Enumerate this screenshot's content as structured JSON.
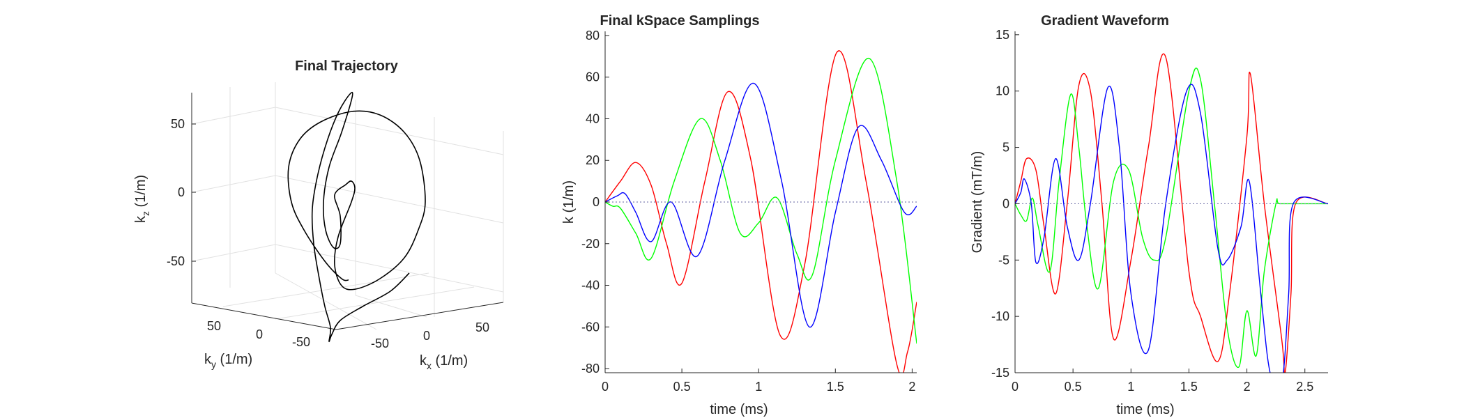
{
  "chart_data": [
    {
      "type": "line",
      "title": "Final Trajectory",
      "projection": "3d",
      "xlabel": "k",
      "xlabel_sub": "x",
      "xlabel_unit": " (1/m)",
      "ylabel": "k",
      "ylabel_sub": "y",
      "ylabel_unit": " (1/m)",
      "zlabel": "k",
      "zlabel_sub": "z",
      "zlabel_unit": " (1/m)",
      "xticks": [
        "-50",
        "0",
        "50"
      ],
      "yticks": [
        "50",
        "0",
        "-50"
      ],
      "zticks": [
        "50",
        "0",
        "-50"
      ],
      "grid": true,
      "line_color": "#000000"
    },
    {
      "type": "line",
      "title": "Final kSpace Samplings",
      "xlabel": "time (ms)",
      "ylabel": "k (1/m)",
      "xlim": [
        0,
        2.03
      ],
      "ylim": [
        -82,
        82
      ],
      "xticks": [
        "0",
        "0.5",
        "1",
        "1.5",
        "2"
      ],
      "yticks": [
        "80",
        "60",
        "40",
        "20",
        "0",
        "-20",
        "-40",
        "-60",
        "-80"
      ],
      "series": [
        {
          "color": "#ff0000",
          "x": [
            0,
            0.1,
            0.2,
            0.3,
            0.4,
            0.5,
            0.65,
            0.8,
            0.95,
            1.14,
            1.3,
            1.51,
            1.7,
            1.9,
            1.97,
            2.03
          ],
          "values": [
            0,
            10,
            19,
            8,
            -20,
            -39,
            10,
            53,
            20,
            -64,
            -30,
            72,
            10,
            -78,
            -72,
            -48
          ]
        },
        {
          "color": "#00ff00",
          "x": [
            0,
            0.05,
            0.1,
            0.2,
            0.3,
            0.45,
            0.62,
            0.75,
            0.88,
            1.0,
            1.12,
            1.25,
            1.35,
            1.5,
            1.72,
            1.9,
            2.03
          ],
          "values": [
            0,
            -2,
            -3,
            -15,
            -27,
            10,
            40,
            20,
            -15,
            -10,
            2,
            -25,
            -35,
            20,
            69,
            10,
            -68
          ]
        },
        {
          "color": "#0000ff",
          "x": [
            0,
            0.08,
            0.13,
            0.2,
            0.3,
            0.43,
            0.6,
            0.78,
            0.97,
            1.15,
            1.33,
            1.5,
            1.65,
            1.8,
            1.95,
            2.03
          ],
          "values": [
            0,
            3,
            4,
            -5,
            -19,
            0,
            -26,
            20,
            57,
            10,
            -60,
            -5,
            36,
            20,
            -5,
            -2
          ]
        },
        {
          "color": "#7f7fb3",
          "dashed": true,
          "x": [
            0,
            2.03
          ],
          "values": [
            0,
            0
          ]
        }
      ]
    },
    {
      "type": "line",
      "title": "Gradient Waveform",
      "xlabel": "time (ms)",
      "ylabel": "Gradient (mT/m)",
      "xlim": [
        0,
        2.7
      ],
      "ylim": [
        -15,
        15.3
      ],
      "xticks": [
        "0",
        "0.5",
        "1",
        "1.5",
        "2",
        "2.5"
      ],
      "yticks": [
        "15",
        "10",
        "5",
        "0",
        "-5",
        "-10",
        "-15"
      ],
      "series": [
        {
          "color": "#ff0000",
          "x": [
            0,
            0.05,
            0.1,
            0.18,
            0.25,
            0.35,
            0.45,
            0.55,
            0.65,
            0.75,
            0.85,
            1.0,
            1.15,
            1.3,
            1.5,
            1.6,
            1.75,
            1.85,
            2.0,
            2.03,
            2.15,
            2.3,
            2.33,
            2.38,
            2.42,
            2.7
          ],
          "values": [
            0,
            2,
            4,
            3,
            -2,
            -8,
            0,
            10.5,
            10,
            0,
            -12,
            -5,
            5,
            13,
            -6,
            -10,
            -14,
            -8,
            6,
            11.5,
            0,
            -12,
            -15,
            -8,
            0,
            0
          ]
        },
        {
          "color": "#00ff00",
          "x": [
            0,
            0.05,
            0.1,
            0.15,
            0.2,
            0.3,
            0.38,
            0.48,
            0.55,
            0.62,
            0.72,
            0.85,
            0.98,
            1.1,
            1.2,
            1.3,
            1.5,
            1.6,
            1.72,
            1.83,
            1.93,
            2.0,
            2.08,
            2.15,
            2.25,
            2.28,
            2.45,
            2.7
          ],
          "values": [
            0,
            -1,
            -1.5,
            0.5,
            -2,
            -6,
            2,
            9.7,
            5,
            -2,
            -7.5,
            2,
            3,
            -3,
            -5,
            -3,
            10,
            11,
            0,
            -11,
            -14.5,
            -9.5,
            -13.5,
            -6,
            0,
            0,
            0,
            0
          ]
        },
        {
          "color": "#0000ff",
          "x": [
            0,
            0.05,
            0.08,
            0.14,
            0.18,
            0.25,
            0.35,
            0.45,
            0.55,
            0.65,
            0.8,
            0.9,
            1.0,
            1.15,
            1.3,
            1.48,
            1.6,
            1.75,
            1.83,
            1.95,
            2.02,
            2.12,
            2.2,
            2.3,
            2.36,
            2.4,
            2.7
          ],
          "values": [
            0,
            1,
            2.2,
            0,
            -5.2,
            -3,
            4,
            -2,
            -5,
            0,
            10.3,
            5,
            -8,
            -13,
            0,
            10,
            8,
            -4,
            -5,
            -2,
            2,
            -8,
            -15,
            -16,
            -8,
            0,
            0
          ]
        },
        {
          "color": "#7f7fb3",
          "dashed": true,
          "x": [
            0,
            2.7
          ],
          "values": [
            0,
            0
          ]
        }
      ]
    }
  ]
}
